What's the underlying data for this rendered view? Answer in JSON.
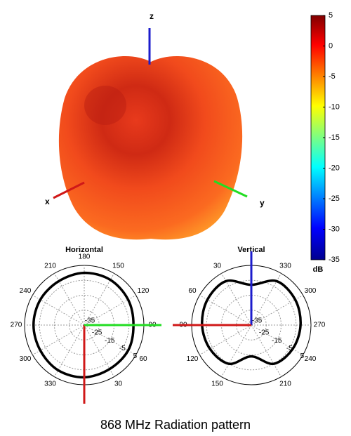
{
  "pattern_3d": {
    "axes": [
      "x",
      "y",
      "z"
    ]
  },
  "caption": "868 MHz Radiation pattern",
  "chart_data": [
    {
      "type": "colorbar",
      "zlim": [
        -35,
        5
      ],
      "zticks": [
        5,
        0,
        -5,
        -10,
        -15,
        -20,
        -25,
        -30,
        -35
      ],
      "label": "dB"
    },
    {
      "type": "polar",
      "title": "Horizontal",
      "theta_zero": "bottom",
      "theta_direction": "counterclockwise",
      "theta": [
        0,
        30,
        60,
        90,
        120,
        150,
        180,
        210,
        240,
        270,
        300,
        330
      ],
      "values": [
        0,
        -1,
        -1,
        -2,
        -1,
        0,
        0,
        -1,
        -1,
        -1,
        -1,
        0
      ],
      "angle_ticks": [
        30,
        60,
        90,
        120,
        150,
        180,
        210,
        240,
        270,
        300,
        330
      ],
      "rlim": [
        -35,
        5
      ],
      "rticks": [
        -35,
        -25,
        -15,
        -5,
        5
      ],
      "color": "#000000"
    },
    {
      "type": "polar",
      "title": "Vertical",
      "theta_zero": "top",
      "theta_direction": "counterclockwise",
      "theta": [
        0,
        30,
        60,
        90,
        120,
        150,
        180,
        210,
        240,
        270,
        300,
        330
      ],
      "values": [
        -8,
        -1,
        -1,
        -2,
        -3,
        -5,
        -14,
        -5,
        -3,
        -2,
        -1,
        -1
      ],
      "angle_ticks": [
        30,
        60,
        90,
        120,
        150,
        210,
        240,
        270,
        300,
        330
      ],
      "rlim": [
        -35,
        5
      ],
      "rticks": [
        -35,
        -25,
        -15,
        -5,
        5
      ],
      "color": "#000000"
    }
  ]
}
